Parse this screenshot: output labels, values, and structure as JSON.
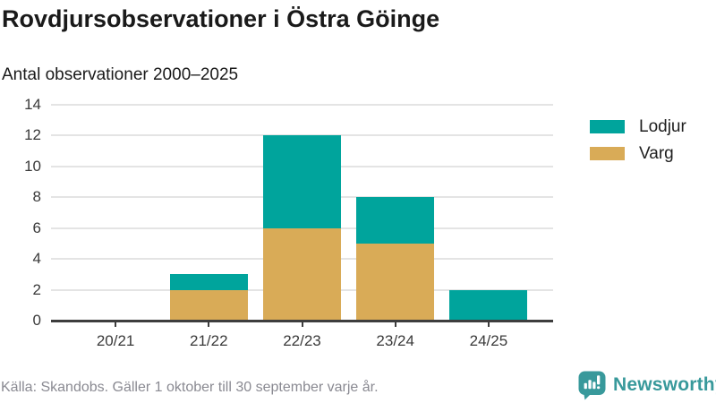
{
  "header": {
    "title": "Rovdjursobservationer i Östra Göinge",
    "subtitle": "Antal observationer 2000–2025"
  },
  "chart_data": {
    "type": "bar",
    "stacked": true,
    "title": "Rovdjursobservationer i Östra Göinge",
    "subtitle": "Antal observationer 2000–2025",
    "xlabel": "",
    "ylabel": "",
    "categories": [
      "20/21",
      "21/22",
      "22/23",
      "23/24",
      "24/25"
    ],
    "series": [
      {
        "name": "Varg",
        "color": "#d9ab57",
        "values": [
          0,
          2,
          6,
          5,
          0
        ]
      },
      {
        "name": "Lodjur",
        "color": "#00a49c",
        "values": [
          0,
          1,
          6,
          3,
          2
        ]
      }
    ],
    "totals": [
      0,
      3,
      12,
      8,
      2
    ],
    "ylim": [
      0,
      14
    ],
    "yticks": [
      0,
      2,
      4,
      6,
      8,
      10,
      12,
      14
    ],
    "grid": true,
    "legend_position": "right"
  },
  "legend": {
    "items": [
      {
        "label": "Lodjur",
        "color": "#00a49c"
      },
      {
        "label": "Varg",
        "color": "#d9ab57"
      }
    ]
  },
  "footer": {
    "source": "Källa: Skandobs. Gäller 1 oktober till 30 september varje år.",
    "brand": "Newsworthy",
    "brand_color": "#38999b"
  },
  "colors": {
    "lodjur_teal": "#00a49c",
    "varg_gold": "#d9ab57",
    "gridline": "#e4e4e4",
    "axis_line": "#3d3d3d",
    "axis_text": "#3a3a3a",
    "title_text": "#1a1a1a",
    "source_text": "#8a8a92",
    "brand_teal": "#38999b"
  }
}
